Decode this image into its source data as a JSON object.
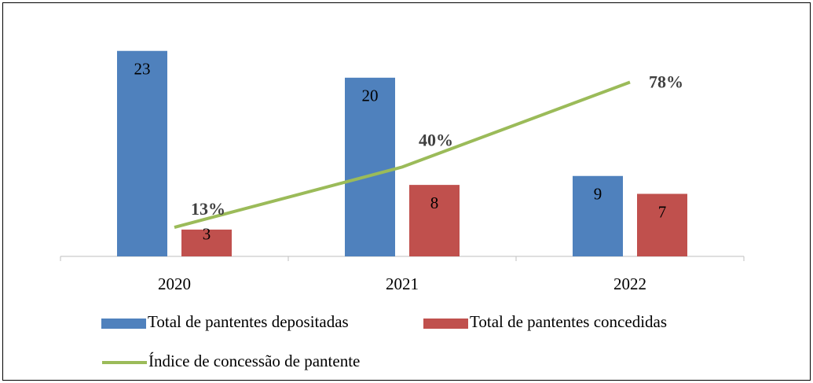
{
  "chart_data": {
    "type": "bar",
    "categories": [
      "2020",
      "2021",
      "2022"
    ],
    "ylim": [
      0,
      25
    ],
    "y2lim": [
      0,
      100
    ],
    "series": [
      {
        "name": "Total de pantentes depositadas",
        "color": "#4f81bd",
        "values": [
          23,
          20,
          9
        ]
      },
      {
        "name": "Total de pantentes concedidas",
        "color": "#c0504d",
        "values": [
          3,
          8,
          7
        ]
      },
      {
        "name": "Índice de concessão de pantente",
        "color": "#9bbb59",
        "type": "line",
        "axis": "y2",
        "values": [
          13,
          40,
          78
        ],
        "value_labels": [
          "13%",
          "40%",
          "78%"
        ]
      }
    ],
    "legend": "bottom"
  }
}
